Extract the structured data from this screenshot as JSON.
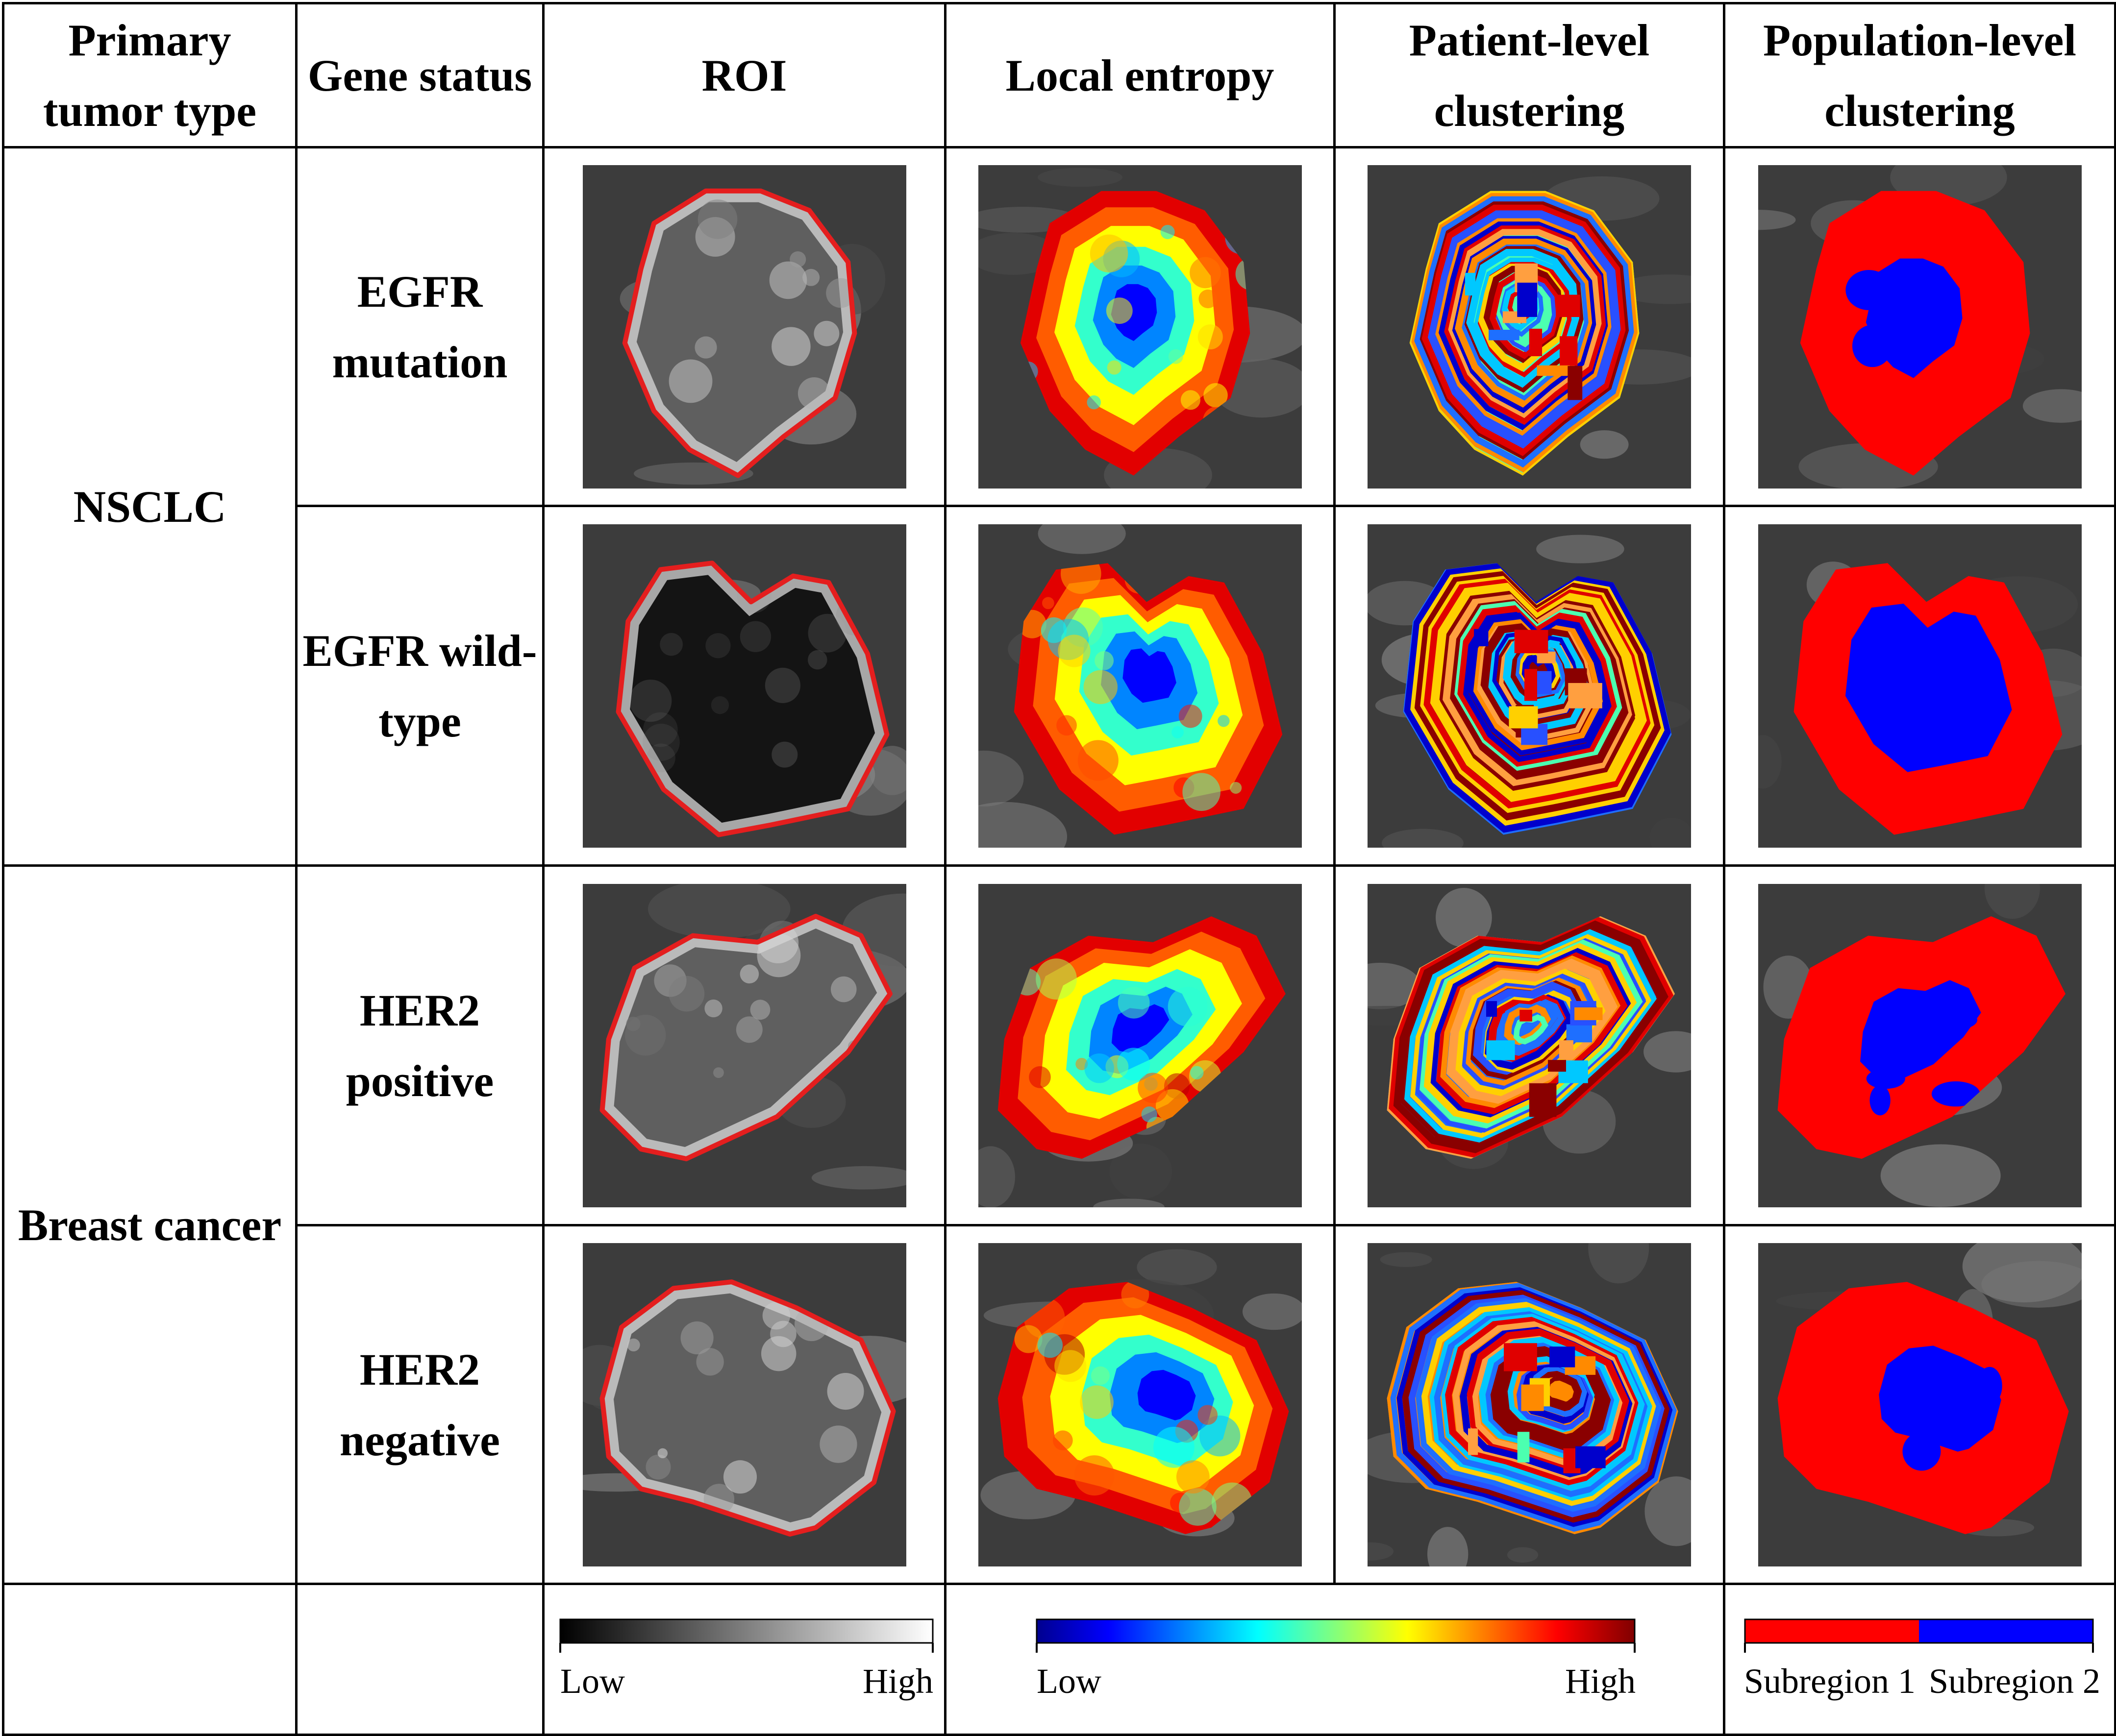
{
  "headers": {
    "tumor_type": "Primary tumor type",
    "gene_status": "Gene status",
    "roi": "ROI",
    "local_entropy": "Local entropy",
    "patient_clustering": "Patient-level clustering",
    "population_clustering": "Population-level clustering"
  },
  "groups": [
    {
      "tumor": "NSCLC",
      "rows": [
        {
          "gene": "EGFR mutation"
        },
        {
          "gene": "EGFR wild-type"
        }
      ]
    },
    {
      "tumor": "Breast cancer",
      "rows": [
        {
          "gene": "HER2 positive"
        },
        {
          "gene": "HER2 negative"
        }
      ]
    }
  ],
  "legends": {
    "roi": {
      "low": "Low",
      "high": "High",
      "colors": [
        "#000000",
        "#ffffff"
      ]
    },
    "entropy": {
      "low": "Low",
      "high": "High",
      "colors": [
        "#00008f",
        "#0000ff",
        "#00ffff",
        "#ffff00",
        "#ff0000",
        "#800000"
      ]
    },
    "population": {
      "sub1": "Subregion 1",
      "sub2": "Subregion 2",
      "colors": {
        "sub1": "#ff0000",
        "sub2": "#0000ff"
      }
    }
  },
  "colors": {
    "roi_contour": "#e41e1e",
    "ct_background": "#3c3c3c",
    "sub1": "#ff0000",
    "sub2": "#0000ff"
  }
}
